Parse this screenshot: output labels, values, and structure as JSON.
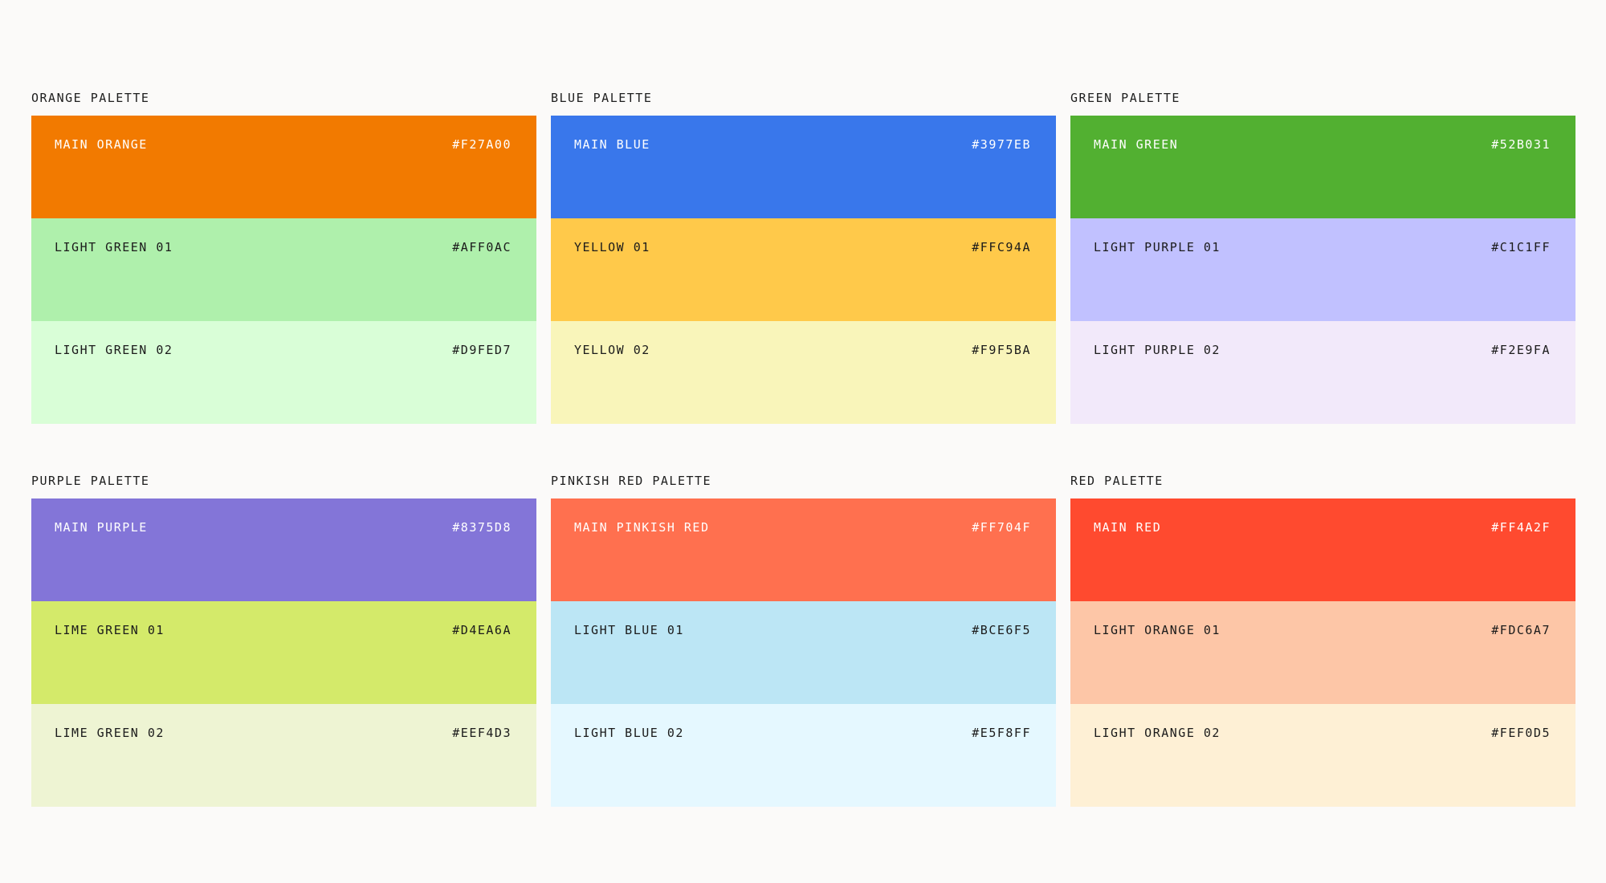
{
  "palettes": [
    {
      "title": "ORANGE PALETTE",
      "swatches": [
        {
          "name": "MAIN ORANGE",
          "hex": "#F27A00",
          "color": "#F27A00",
          "text": "dark"
        },
        {
          "name": "LIGHT GREEN 01",
          "hex": "#AFF0AC",
          "color": "#AFF0AC",
          "text": "light"
        },
        {
          "name": "LIGHT GREEN 02",
          "hex": "#D9FED7",
          "color": "#D9FED7",
          "text": "light"
        }
      ]
    },
    {
      "title": "BLUE PALETTE",
      "swatches": [
        {
          "name": "MAIN BLUE",
          "hex": "#3977EB",
          "color": "#3977EB",
          "text": "dark"
        },
        {
          "name": "YELLOW 01",
          "hex": "#FFC94A",
          "color": "#FFC94A",
          "text": "light"
        },
        {
          "name": "YELLOW 02",
          "hex": "#F9F5BA",
          "color": "#F9F5BA",
          "text": "light"
        }
      ]
    },
    {
      "title": "GREEN PALETTE",
      "swatches": [
        {
          "name": "MAIN GREEN",
          "hex": "#52B031",
          "color": "#52B031",
          "text": "dark"
        },
        {
          "name": "LIGHT PURPLE 01",
          "hex": "#C1C1FF",
          "color": "#C1C1FF",
          "text": "light"
        },
        {
          "name": "LIGHT PURPLE 02",
          "hex": "#F2E9FA",
          "color": "#F2E9FA",
          "text": "light"
        }
      ]
    },
    {
      "title": "PURPLE PALETTE",
      "swatches": [
        {
          "name": "MAIN PURPLE",
          "hex": "#8375D8",
          "color": "#8375D8",
          "text": "dark"
        },
        {
          "name": "LIME GREEN 01",
          "hex": "#D4EA6A",
          "color": "#D4EA6A",
          "text": "light"
        },
        {
          "name": "LIME GREEN 02",
          "hex": "#EEF4D3",
          "color": "#EEF4D3",
          "text": "light"
        }
      ]
    },
    {
      "title": "PINKISH RED PALETTE",
      "swatches": [
        {
          "name": "MAIN PINKISH RED",
          "hex": "#FF704F",
          "color": "#FF704F",
          "text": "dark"
        },
        {
          "name": "LIGHT BLUE 01",
          "hex": "#BCE6F5",
          "color": "#BCE6F5",
          "text": "light"
        },
        {
          "name": "LIGHT BLUE 02",
          "hex": "#E5F8FF",
          "color": "#E5F8FF",
          "text": "light"
        }
      ]
    },
    {
      "title": "RED PALETTE",
      "swatches": [
        {
          "name": "MAIN RED",
          "hex": "#FF4A2F",
          "color": "#FF4A2F",
          "text": "dark"
        },
        {
          "name": "LIGHT ORANGE 01",
          "hex": "#FDC6A7",
          "color": "#FDC6A7",
          "text": "light"
        },
        {
          "name": "LIGHT ORANGE 02",
          "hex": "#FEF0D5",
          "color": "#FEF0D5",
          "text": "light"
        }
      ]
    }
  ]
}
